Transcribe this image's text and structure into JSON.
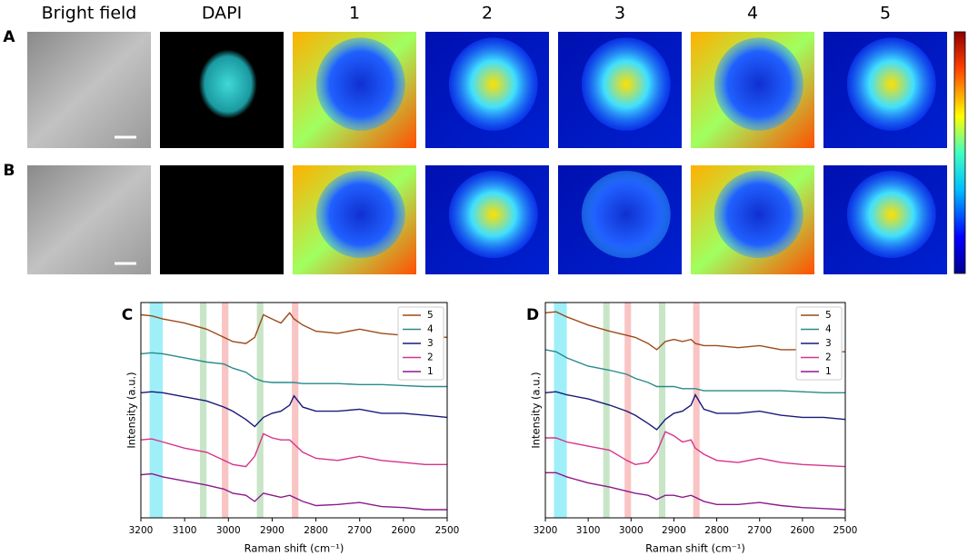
{
  "panels": {
    "columns": [
      "Bright field",
      "DAPI",
      "1",
      "2",
      "3",
      "4",
      "5"
    ],
    "rows": [
      "A",
      "B"
    ]
  },
  "chart_data": [
    {
      "type": "line",
      "panel_label": "C",
      "x_label": "Raman shift (cm⁻¹)",
      "y_label": "Intensity (a.u.)",
      "x": [
        3200,
        3175,
        3150,
        3100,
        3050,
        3010,
        2990,
        2960,
        2940,
        2920,
        2900,
        2880,
        2860,
        2850,
        2830,
        2800,
        2750,
        2700,
        2650,
        2600,
        2550,
        2500
      ],
      "xlim": [
        3200,
        2500
      ],
      "xticks": [
        3200,
        3100,
        3000,
        2900,
        2800,
        2700,
        2600,
        2500
      ],
      "ylim": [
        -0.2,
        10.3
      ],
      "legend": "upper right",
      "bands": [
        {
          "range": [
            3180,
            3150
          ],
          "color": "#7fe9f5"
        },
        {
          "range": [
            3065,
            3050
          ],
          "color": "#b5dcb5"
        },
        {
          "range": [
            3015,
            3000
          ],
          "color": "#f7b0b0"
        },
        {
          "range": [
            2935,
            2920
          ],
          "color": "#b5dcb5"
        },
        {
          "range": [
            2855,
            2840
          ],
          "color": "#f7b0b0"
        }
      ],
      "series": [
        {
          "name": "5",
          "color": "#9c4a1a",
          "values": [
            9.7,
            9.65,
            9.5,
            9.3,
            9.0,
            8.6,
            8.4,
            8.3,
            8.6,
            9.7,
            9.5,
            9.3,
            9.8,
            9.5,
            9.2,
            8.9,
            8.8,
            9.0,
            8.8,
            8.7,
            8.7,
            8.6
          ]
        },
        {
          "name": "4",
          "color": "#2a8a8a",
          "values": [
            7.8,
            7.85,
            7.8,
            7.6,
            7.4,
            7.3,
            7.1,
            6.9,
            6.6,
            6.45,
            6.4,
            6.4,
            6.4,
            6.4,
            6.35,
            6.35,
            6.35,
            6.3,
            6.3,
            6.25,
            6.2,
            6.2
          ]
        },
        {
          "name": "3",
          "color": "#1a1a7a",
          "values": [
            5.9,
            5.95,
            5.9,
            5.7,
            5.5,
            5.2,
            5.0,
            4.6,
            4.25,
            4.7,
            4.9,
            5.0,
            5.3,
            5.75,
            5.2,
            5.0,
            5.0,
            5.1,
            4.9,
            4.9,
            4.8,
            4.7
          ]
        },
        {
          "name": "2",
          "color": "#d6338a",
          "values": [
            3.6,
            3.65,
            3.5,
            3.2,
            3.0,
            2.6,
            2.4,
            2.3,
            2.8,
            3.9,
            3.7,
            3.6,
            3.6,
            3.4,
            3.0,
            2.7,
            2.6,
            2.8,
            2.6,
            2.5,
            2.4,
            2.4
          ]
        },
        {
          "name": "1",
          "color": "#8b1a8b",
          "values": [
            1.9,
            1.95,
            1.8,
            1.6,
            1.4,
            1.2,
            1.0,
            0.9,
            0.6,
            1.0,
            0.9,
            0.8,
            0.9,
            0.8,
            0.6,
            0.4,
            0.45,
            0.55,
            0.35,
            0.3,
            0.2,
            0.2
          ]
        }
      ]
    },
    {
      "type": "line",
      "panel_label": "D",
      "x_label": "Raman shift (cm⁻¹)",
      "y_label": "Intensity (a.u.)",
      "x": [
        3200,
        3175,
        3150,
        3100,
        3050,
        3010,
        2990,
        2960,
        2940,
        2920,
        2900,
        2880,
        2860,
        2850,
        2830,
        2800,
        2750,
        2700,
        2650,
        2600,
        2550,
        2500
      ],
      "xlim": [
        3200,
        2500
      ],
      "xticks": [
        3200,
        3100,
        3000,
        2900,
        2800,
        2700,
        2600,
        2500
      ],
      "ylim": [
        -0.2,
        10.3
      ],
      "legend": "upper right",
      "bands": [
        {
          "range": [
            3180,
            3150
          ],
          "color": "#7fe9f5"
        },
        {
          "range": [
            3065,
            3050
          ],
          "color": "#b5dcb5"
        },
        {
          "range": [
            3015,
            3000
          ],
          "color": "#f7b0b0"
        },
        {
          "range": [
            2935,
            2920
          ],
          "color": "#b5dcb5"
        },
        {
          "range": [
            2855,
            2840
          ],
          "color": "#f7b0b0"
        }
      ],
      "series": [
        {
          "name": "5",
          "color": "#9c4a1a",
          "values": [
            9.8,
            9.85,
            9.6,
            9.2,
            8.9,
            8.7,
            8.6,
            8.3,
            8.0,
            8.4,
            8.5,
            8.4,
            8.5,
            8.3,
            8.2,
            8.2,
            8.1,
            8.2,
            8.0,
            8.0,
            7.9,
            7.9
          ]
        },
        {
          "name": "4",
          "color": "#2a8a8a",
          "values": [
            8.0,
            7.9,
            7.6,
            7.2,
            7.0,
            6.8,
            6.6,
            6.4,
            6.2,
            6.2,
            6.2,
            6.1,
            6.1,
            6.1,
            6.0,
            6.0,
            6.0,
            6.0,
            6.0,
            5.95,
            5.9,
            5.9
          ]
        },
        {
          "name": "3",
          "color": "#1a1a7a",
          "values": [
            5.9,
            5.95,
            5.8,
            5.6,
            5.3,
            5.0,
            4.8,
            4.4,
            4.1,
            4.6,
            4.9,
            5.0,
            5.3,
            5.8,
            5.1,
            4.9,
            4.9,
            5.0,
            4.8,
            4.7,
            4.7,
            4.6
          ]
        },
        {
          "name": "2",
          "color": "#d6338a",
          "values": [
            3.7,
            3.7,
            3.5,
            3.3,
            3.1,
            2.6,
            2.4,
            2.5,
            3.0,
            4.0,
            3.8,
            3.5,
            3.6,
            3.2,
            2.9,
            2.6,
            2.5,
            2.7,
            2.5,
            2.4,
            2.35,
            2.3
          ]
        },
        {
          "name": "1",
          "color": "#8b1a8b",
          "values": [
            2.0,
            2.0,
            1.8,
            1.5,
            1.3,
            1.1,
            1.0,
            0.9,
            0.7,
            0.9,
            0.9,
            0.8,
            0.9,
            0.8,
            0.6,
            0.45,
            0.45,
            0.55,
            0.4,
            0.3,
            0.25,
            0.2
          ]
        }
      ]
    }
  ]
}
